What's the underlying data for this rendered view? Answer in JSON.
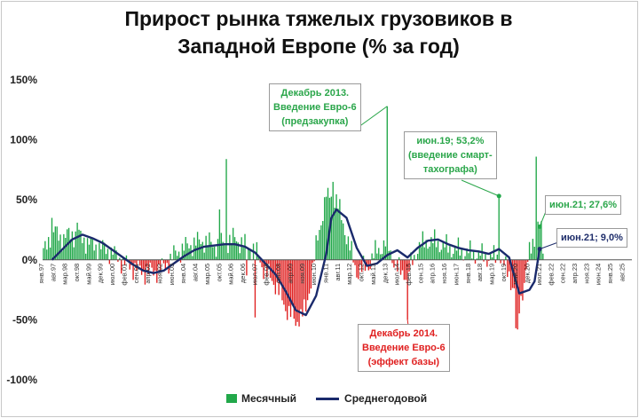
{
  "title_line1": "Прирост рынка тяжелых грузовиков в",
  "title_line2": "Западной Европе (% за год)",
  "annotations": {
    "dec2013": [
      "Декабрь 2013.",
      "Введение Евро-6",
      "(предзакупка)"
    ],
    "jun19": [
      "июн.19; 53,2%",
      "(введение смарт-",
      "тахографа)"
    ],
    "jun21_monthly": "июн.21; 27,6%",
    "jun21_avg": "июн.21; 9,0%",
    "dec2014": [
      "Декабрь 2014.",
      "Введение Евро-6",
      "(эффект базы)"
    ]
  },
  "legend": {
    "monthly": "Месячный",
    "average": "Среднегодовой"
  },
  "colors": {
    "positive_bar": "#22a84a",
    "negative_bar": "#e02020",
    "average_line": "#1a2a6c"
  },
  "chart_data": {
    "type": "bar",
    "title": "Прирост рынка тяжелых грузовиков в Западной Европе (% за год)",
    "ylim": [
      -100,
      150
    ],
    "yticks": [
      -100,
      -50,
      0,
      50,
      100,
      150
    ],
    "ytick_labels": [
      "-100%",
      "-50%",
      "0%",
      "50%",
      "100%",
      "150%"
    ],
    "x_start": "1997-01",
    "x_end": "2025-12",
    "xtick_labels": [
      "янв.97",
      "авг.97",
      "мар.98",
      "окт.98",
      "май.99",
      "дек.99",
      "июл.00",
      "фев.01",
      "сен.01",
      "апр.02",
      "ноя.02",
      "июн.03",
      "янв.04",
      "авг.04",
      "мар.05",
      "окт.05",
      "май.06",
      "дек.06",
      "июл.07",
      "фев.08",
      "сен.08",
      "апр.09",
      "ноя.09",
      "июн.10",
      "янв.11",
      "авг.11",
      "мар.12",
      "окт.12",
      "май.13",
      "дек.13",
      "июл.14",
      "фев.15",
      "сен.15",
      "апр.16",
      "ноя.16",
      "июн.17",
      "янв.18",
      "авг.18",
      "мар.19",
      "окт.19",
      "май.20",
      "дек.20",
      "июл.21",
      "фев.22",
      "сен.22",
      "апр.23",
      "ноя.23",
      "июн.24",
      "янв.25",
      "авг.25"
    ],
    "monthly_keypoints": [
      [
        "1997-01",
        5
      ],
      [
        "1997-06",
        25
      ],
      [
        "1997-12",
        18
      ],
      [
        "1998-06",
        22
      ],
      [
        "1998-12",
        18
      ],
      [
        "1999-06",
        12
      ],
      [
        "1999-12",
        10
      ],
      [
        "2000-06",
        6
      ],
      [
        "2000-12",
        -2
      ],
      [
        "2001-06",
        -6
      ],
      [
        "2001-12",
        -10
      ],
      [
        "2002-06",
        -10
      ],
      [
        "2002-12",
        -6
      ],
      [
        "2003-06",
        4
      ],
      [
        "2003-12",
        10
      ],
      [
        "2004-06",
        14
      ],
      [
        "2004-12",
        16
      ],
      [
        "2005-06",
        12
      ],
      [
        "2005-12",
        14
      ],
      [
        "2006-06",
        18
      ],
      [
        "2006-12",
        12
      ],
      [
        "2007-06",
        8
      ],
      [
        "2007-12",
        -10
      ],
      [
        "2008-06",
        -20
      ],
      [
        "2008-12",
        -40
      ],
      [
        "2009-06",
        -50
      ],
      [
        "2009-12",
        -42
      ],
      [
        "2010-06",
        10
      ],
      [
        "2010-12",
        55
      ],
      [
        "2011-06",
        50
      ],
      [
        "2011-12",
        20
      ],
      [
        "2012-06",
        -10
      ],
      [
        "2012-12",
        -6
      ],
      [
        "2013-06",
        8
      ],
      [
        "2013-12",
        14
      ],
      [
        "2014-06",
        -8
      ],
      [
        "2014-12",
        -12
      ],
      [
        "2015-06",
        10
      ],
      [
        "2015-12",
        16
      ],
      [
        "2016-06",
        14
      ],
      [
        "2016-12",
        10
      ],
      [
        "2017-06",
        8
      ],
      [
        "2017-12",
        6
      ],
      [
        "2018-06",
        4
      ],
      [
        "2018-12",
        2
      ],
      [
        "2019-06",
        2
      ],
      [
        "2019-12",
        -12
      ],
      [
        "2020-06",
        -40
      ],
      [
        "2020-12",
        5
      ],
      [
        "2021-06",
        35
      ],
      [
        "2021-08",
        10
      ]
    ],
    "monthly_spikes": [
      [
        "1997-06",
        35
      ],
      [
        "1998-09",
        31
      ],
      [
        "2005-09",
        42
      ],
      [
        "2006-01",
        84
      ],
      [
        "2007-01",
        -13
      ],
      [
        "2007-06",
        -48
      ],
      [
        "2009-06",
        -55
      ],
      [
        "2011-01",
        60
      ],
      [
        "2011-04",
        65
      ],
      [
        "2013-12",
        128
      ],
      [
        "2014-12",
        -50
      ],
      [
        "2019-06",
        53.2
      ],
      [
        "2020-04",
        -57
      ],
      [
        "2020-05",
        -58
      ],
      [
        "2021-04",
        86
      ],
      [
        "2021-06",
        27.6
      ]
    ],
    "average_line": [
      [
        "1997-06",
        0
      ],
      [
        "1998-06",
        17
      ],
      [
        "1998-12",
        21
      ],
      [
        "1999-06",
        18
      ],
      [
        "1999-12",
        14
      ],
      [
        "2000-06",
        8
      ],
      [
        "2000-12",
        2
      ],
      [
        "2001-06",
        -4
      ],
      [
        "2001-12",
        -9
      ],
      [
        "2002-06",
        -11
      ],
      [
        "2002-12",
        -9
      ],
      [
        "2003-06",
        -3
      ],
      [
        "2003-12",
        3
      ],
      [
        "2004-06",
        8
      ],
      [
        "2004-12",
        11
      ],
      [
        "2005-06",
        12
      ],
      [
        "2005-12",
        13
      ],
      [
        "2006-06",
        13
      ],
      [
        "2006-12",
        11
      ],
      [
        "2007-06",
        6
      ],
      [
        "2007-12",
        -3
      ],
      [
        "2008-06",
        -12
      ],
      [
        "2008-12",
        -26
      ],
      [
        "2009-06",
        -42
      ],
      [
        "2009-12",
        -46
      ],
      [
        "2010-06",
        -30
      ],
      [
        "2010-12",
        5
      ],
      [
        "2011-03",
        35
      ],
      [
        "2011-06",
        42
      ],
      [
        "2011-12",
        35
      ],
      [
        "2012-06",
        10
      ],
      [
        "2012-12",
        -5
      ],
      [
        "2013-06",
        -3
      ],
      [
        "2013-12",
        4
      ],
      [
        "2014-06",
        8
      ],
      [
        "2014-12",
        2
      ],
      [
        "2015-06",
        10
      ],
      [
        "2015-12",
        16
      ],
      [
        "2016-06",
        17
      ],
      [
        "2016-12",
        13
      ],
      [
        "2017-06",
        10
      ],
      [
        "2017-12",
        8
      ],
      [
        "2018-06",
        7
      ],
      [
        "2018-12",
        5
      ],
      [
        "2019-06",
        9
      ],
      [
        "2019-12",
        2
      ],
      [
        "2020-06",
        -28
      ],
      [
        "2020-12",
        -25
      ],
      [
        "2021-03",
        -18
      ],
      [
        "2021-06",
        9
      ]
    ],
    "highlight_points": [
      {
        "x": "2021-06",
        "y": 27.6,
        "series": "monthly"
      },
      {
        "x": "2021-06",
        "y": 9.0,
        "series": "average"
      },
      {
        "x": "2019-06",
        "y": 53.2,
        "series": "monthly"
      }
    ]
  }
}
